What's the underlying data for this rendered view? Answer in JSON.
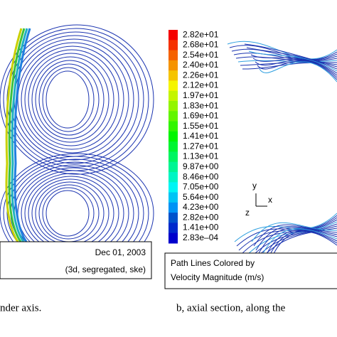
{
  "left_panel": {
    "date": "Dec 01, 2003",
    "solver": "(3d, segregated, ske)",
    "caption": "nder axis."
  },
  "right_panel": {
    "colorbar_labels": [
      "2.82e+01",
      "2.68e+01",
      "2.54e+01",
      "2.40e+01",
      "2.26e+01",
      "2.12e+01",
      "1.97e+01",
      "1.83e+01",
      "1.69e+01",
      "1.55e+01",
      "1.41e+01",
      "1.27e+01",
      "1.13e+01",
      "9.87e+00",
      "8.46e+00",
      "7.05e+00",
      "5.64e+00",
      "4.23e+00",
      "2.82e+00",
      "1.41e+00",
      "2.83e–04"
    ],
    "legend": [
      "Path Lines Colored by",
      "Velocity Magnitude (m/s)"
    ],
    "axes": {
      "y": "y",
      "x": "x",
      "z": "z"
    },
    "caption": "b, axial section, along the"
  }
}
